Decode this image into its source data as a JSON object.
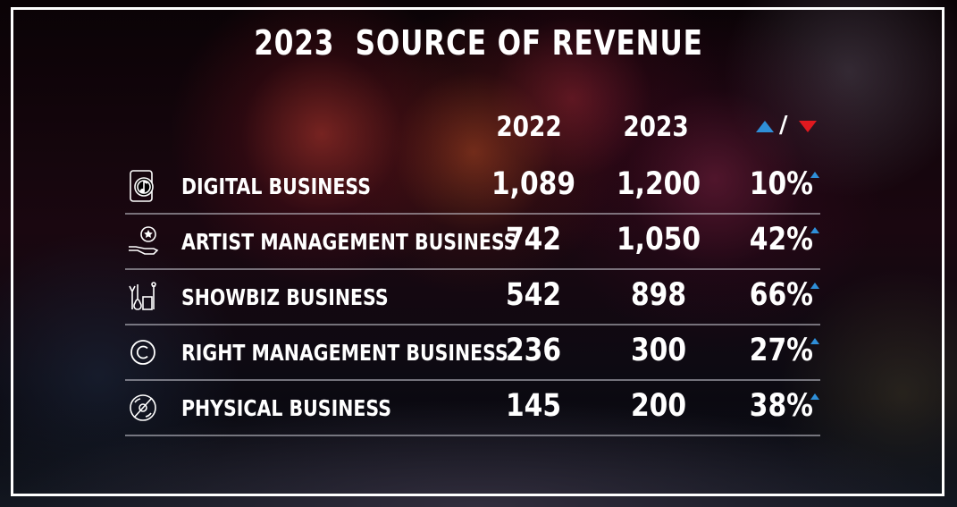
{
  "title": "2023  SOURCE OF REVENUE",
  "columns": {
    "y2022": "2022",
    "y2023": "2023",
    "change_sep": "/"
  },
  "colors": {
    "up": "#2f8fd8",
    "down": "#e0191f"
  },
  "rows": [
    {
      "label": "DIGITAL BUSINESS",
      "icon": "music-phone-icon",
      "v2022": "1,089",
      "v2023": "1,200",
      "change": "10%",
      "direction": "up"
    },
    {
      "label": "ARTIST MANAGEMENT BUSINESS",
      "icon": "hand-star-icon",
      "v2022": "742",
      "v2023": "1,050",
      "change": "42%",
      "direction": "up"
    },
    {
      "label": "SHOWBIZ BUSINESS",
      "icon": "stage-instruments-icon",
      "v2022": "542",
      "v2023": "898",
      "change": "66%",
      "direction": "up"
    },
    {
      "label": "RIGHT MANAGEMENT BUSINESS",
      "icon": "copyright-icon",
      "v2022": "236",
      "v2023": "300",
      "change": "27%",
      "direction": "up"
    },
    {
      "label": "PHYSICAL BUSINESS",
      "icon": "disc-icon",
      "v2022": "145",
      "v2023": "200",
      "change": "38%",
      "direction": "up"
    }
  ],
  "chart_data": {
    "type": "table",
    "title": "2023  SOURCE OF REVENUE",
    "columns": [
      "2022",
      "2023",
      "/"
    ],
    "categories": [
      "DIGITAL BUSINESS",
      "ARTIST MANAGEMENT BUSINESS",
      "SHOWBIZ BUSINESS",
      "RIGHT MANAGEMENT BUSINESS",
      "PHYSICAL BUSINESS"
    ],
    "series": [
      {
        "name": "2022",
        "values": [
          1089,
          742,
          542,
          236,
          145
        ]
      },
      {
        "name": "2023",
        "values": [
          1200,
          1050,
          898,
          300,
          200
        ]
      }
    ],
    "change_percent": [
      10,
      42,
      66,
      27,
      38
    ],
    "change_direction": [
      "up",
      "up",
      "up",
      "up",
      "up"
    ]
  }
}
